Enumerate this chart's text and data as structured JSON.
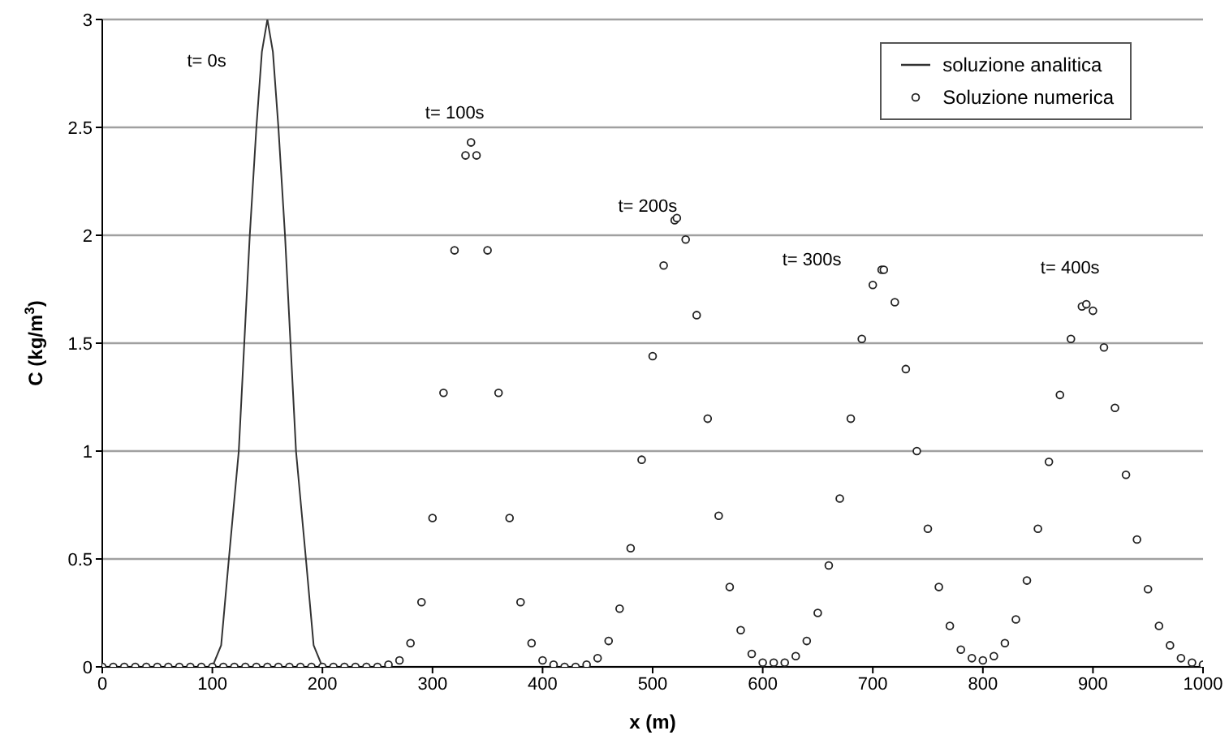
{
  "chart_data": {
    "type": "line",
    "xlabel": "x (m)",
    "ylabel": "C (kg/m$^{3}$)",
    "xlim": [
      0,
      1000
    ],
    "xticks": [
      0,
      100,
      200,
      300,
      400,
      500,
      600,
      700,
      800,
      900,
      1000
    ],
    "ylim": [
      0,
      3
    ],
    "yticks": [
      0,
      0.5,
      1,
      1.5,
      2,
      2.5,
      3
    ],
    "grid": "y",
    "legend": "top right",
    "series": [
      {
        "name": "soluzione analitica",
        "marker": "none",
        "color": "#333333",
        "x": [
          0,
          100,
          108,
          115,
          124,
          129,
          134,
          140,
          145,
          150,
          155,
          160,
          166,
          171,
          176,
          185,
          192,
          200,
          1000
        ],
        "values": [
          0,
          0,
          0.1,
          0.5,
          1,
          1.5,
          2,
          2.5,
          2.85,
          3,
          2.85,
          2.5,
          2,
          1.5,
          1,
          0.5,
          0.1,
          0,
          0
        ]
      },
      {
        "name": "Soluzione numerica",
        "type": "scatter",
        "marker": "circle",
        "color": "#222222",
        "x": [
          0,
          10,
          20,
          30,
          40,
          50,
          60,
          70,
          80,
          90,
          100,
          110,
          120,
          130,
          140,
          150,
          160,
          170,
          180,
          190,
          200,
          210,
          220,
          230,
          240,
          250,
          260,
          270,
          280,
          290,
          300,
          310,
          320,
          330,
          335,
          340,
          350,
          360,
          370,
          380,
          390,
          400,
          410,
          420,
          430,
          440,
          450,
          460,
          470,
          480,
          490,
          500,
          510,
          520,
          522,
          530,
          540,
          550,
          560,
          570,
          580,
          590,
          600,
          610,
          620,
          630,
          640,
          650,
          660,
          670,
          680,
          690,
          700,
          708,
          710,
          720,
          730,
          740,
          750,
          760,
          770,
          780,
          790,
          800,
          810,
          820,
          830,
          840,
          850,
          860,
          870,
          880,
          890,
          894,
          900,
          910,
          920,
          930,
          940,
          950,
          960,
          970,
          980,
          990,
          1000
        ],
        "values": [
          0,
          0,
          0,
          0,
          0,
          0,
          0,
          0,
          0,
          0,
          0,
          0,
          0,
          0,
          0,
          0,
          0,
          0,
          0,
          0,
          0,
          0,
          0,
          0,
          0,
          0,
          0.01,
          0.03,
          0.11,
          0.3,
          0.69,
          1.27,
          1.93,
          2.37,
          2.43,
          2.37,
          1.93,
          1.27,
          0.69,
          0.3,
          0.11,
          0.03,
          0.01,
          0,
          0,
          0.01,
          0.04,
          0.12,
          0.27,
          0.55,
          0.96,
          1.44,
          1.86,
          2.07,
          2.08,
          1.98,
          1.63,
          1.15,
          0.7,
          0.37,
          0.17,
          0.06,
          0.02,
          0.02,
          0.02,
          0.05,
          0.12,
          0.25,
          0.47,
          0.78,
          1.15,
          1.52,
          1.77,
          1.84,
          1.84,
          1.69,
          1.38,
          1,
          0.64,
          0.37,
          0.19,
          0.08,
          0.04,
          0.03,
          0.05,
          0.11,
          0.22,
          0.4,
          0.64,
          0.95,
          1.26,
          1.52,
          1.67,
          1.68,
          1.65,
          1.48,
          1.2,
          0.89,
          0.59,
          0.36,
          0.19,
          0.1,
          0.04,
          0.02,
          0.01
        ]
      }
    ],
    "annotations": [
      {
        "text": "t= 0s",
        "x": 145,
        "y": 2.85
      },
      {
        "text": "t= 100s",
        "x": 335,
        "y": 2.43
      },
      {
        "text": "t= 200s",
        "x": 522,
        "y": 2.08
      },
      {
        "text": "t= 300s",
        "x": 708,
        "y": 1.84
      },
      {
        "text": "t= 400s",
        "x": 894,
        "y": 1.68
      }
    ]
  }
}
